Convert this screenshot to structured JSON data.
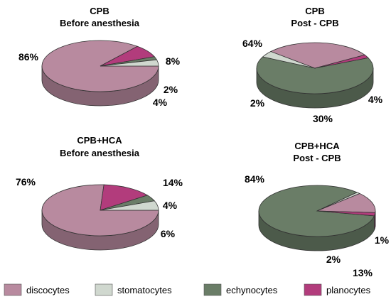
{
  "colors": {
    "discocytes": "#b88a9f",
    "stomatocytes": "#d0d8cf",
    "echynocytes": "#6a7d67",
    "planocytes": "#b23c7c"
  },
  "legend": [
    {
      "key": "discocytes",
      "label": "discocytes"
    },
    {
      "key": "stomatocytes",
      "label": "stomatocytes"
    },
    {
      "key": "echynocytes",
      "label": "echynocytes"
    },
    {
      "key": "planocytes",
      "label": "planocytes"
    }
  ],
  "chart_data": [
    {
      "type": "pie",
      "title": [
        "CPB",
        "Before anesthesia"
      ],
      "slices": [
        {
          "category": "discocytes",
          "value": 86,
          "label": "86%"
        },
        {
          "category": "planocytes",
          "value": 8,
          "label": "8%"
        },
        {
          "category": "echynocytes",
          "value": 2,
          "label": "2%"
        },
        {
          "category": "stomatocytes",
          "value": 4,
          "label": "4%"
        }
      ]
    },
    {
      "type": "pie",
      "title": [
        "CPB",
        "Post - CPB"
      ],
      "slices": [
        {
          "category": "echynocytes",
          "value": 64,
          "label": "64%"
        },
        {
          "category": "stomatocytes",
          "value": 4,
          "label": "4%"
        },
        {
          "category": "discocytes",
          "value": 30,
          "label": "30%"
        },
        {
          "category": "planocytes",
          "value": 2,
          "label": "2%"
        }
      ]
    },
    {
      "type": "pie",
      "title": [
        "CPB+HCA",
        "Before anesthesia"
      ],
      "slices": [
        {
          "category": "discocytes",
          "value": 76,
          "label": "76%"
        },
        {
          "category": "planocytes",
          "value": 14,
          "label": "14%"
        },
        {
          "category": "echynocytes",
          "value": 4,
          "label": "4%"
        },
        {
          "category": "stomatocytes",
          "value": 6,
          "label": "6%"
        }
      ]
    },
    {
      "type": "pie",
      "title": [
        "CPB+HCA",
        "Post - CPB"
      ],
      "slices": [
        {
          "category": "echynocytes",
          "value": 84,
          "label": "84%"
        },
        {
          "category": "stomatocytes",
          "value": 1,
          "label": "1%"
        },
        {
          "category": "discocytes",
          "value": 13,
          "label": "13%"
        },
        {
          "category": "planocytes",
          "value": 2,
          "label": "2%"
        }
      ]
    }
  ]
}
